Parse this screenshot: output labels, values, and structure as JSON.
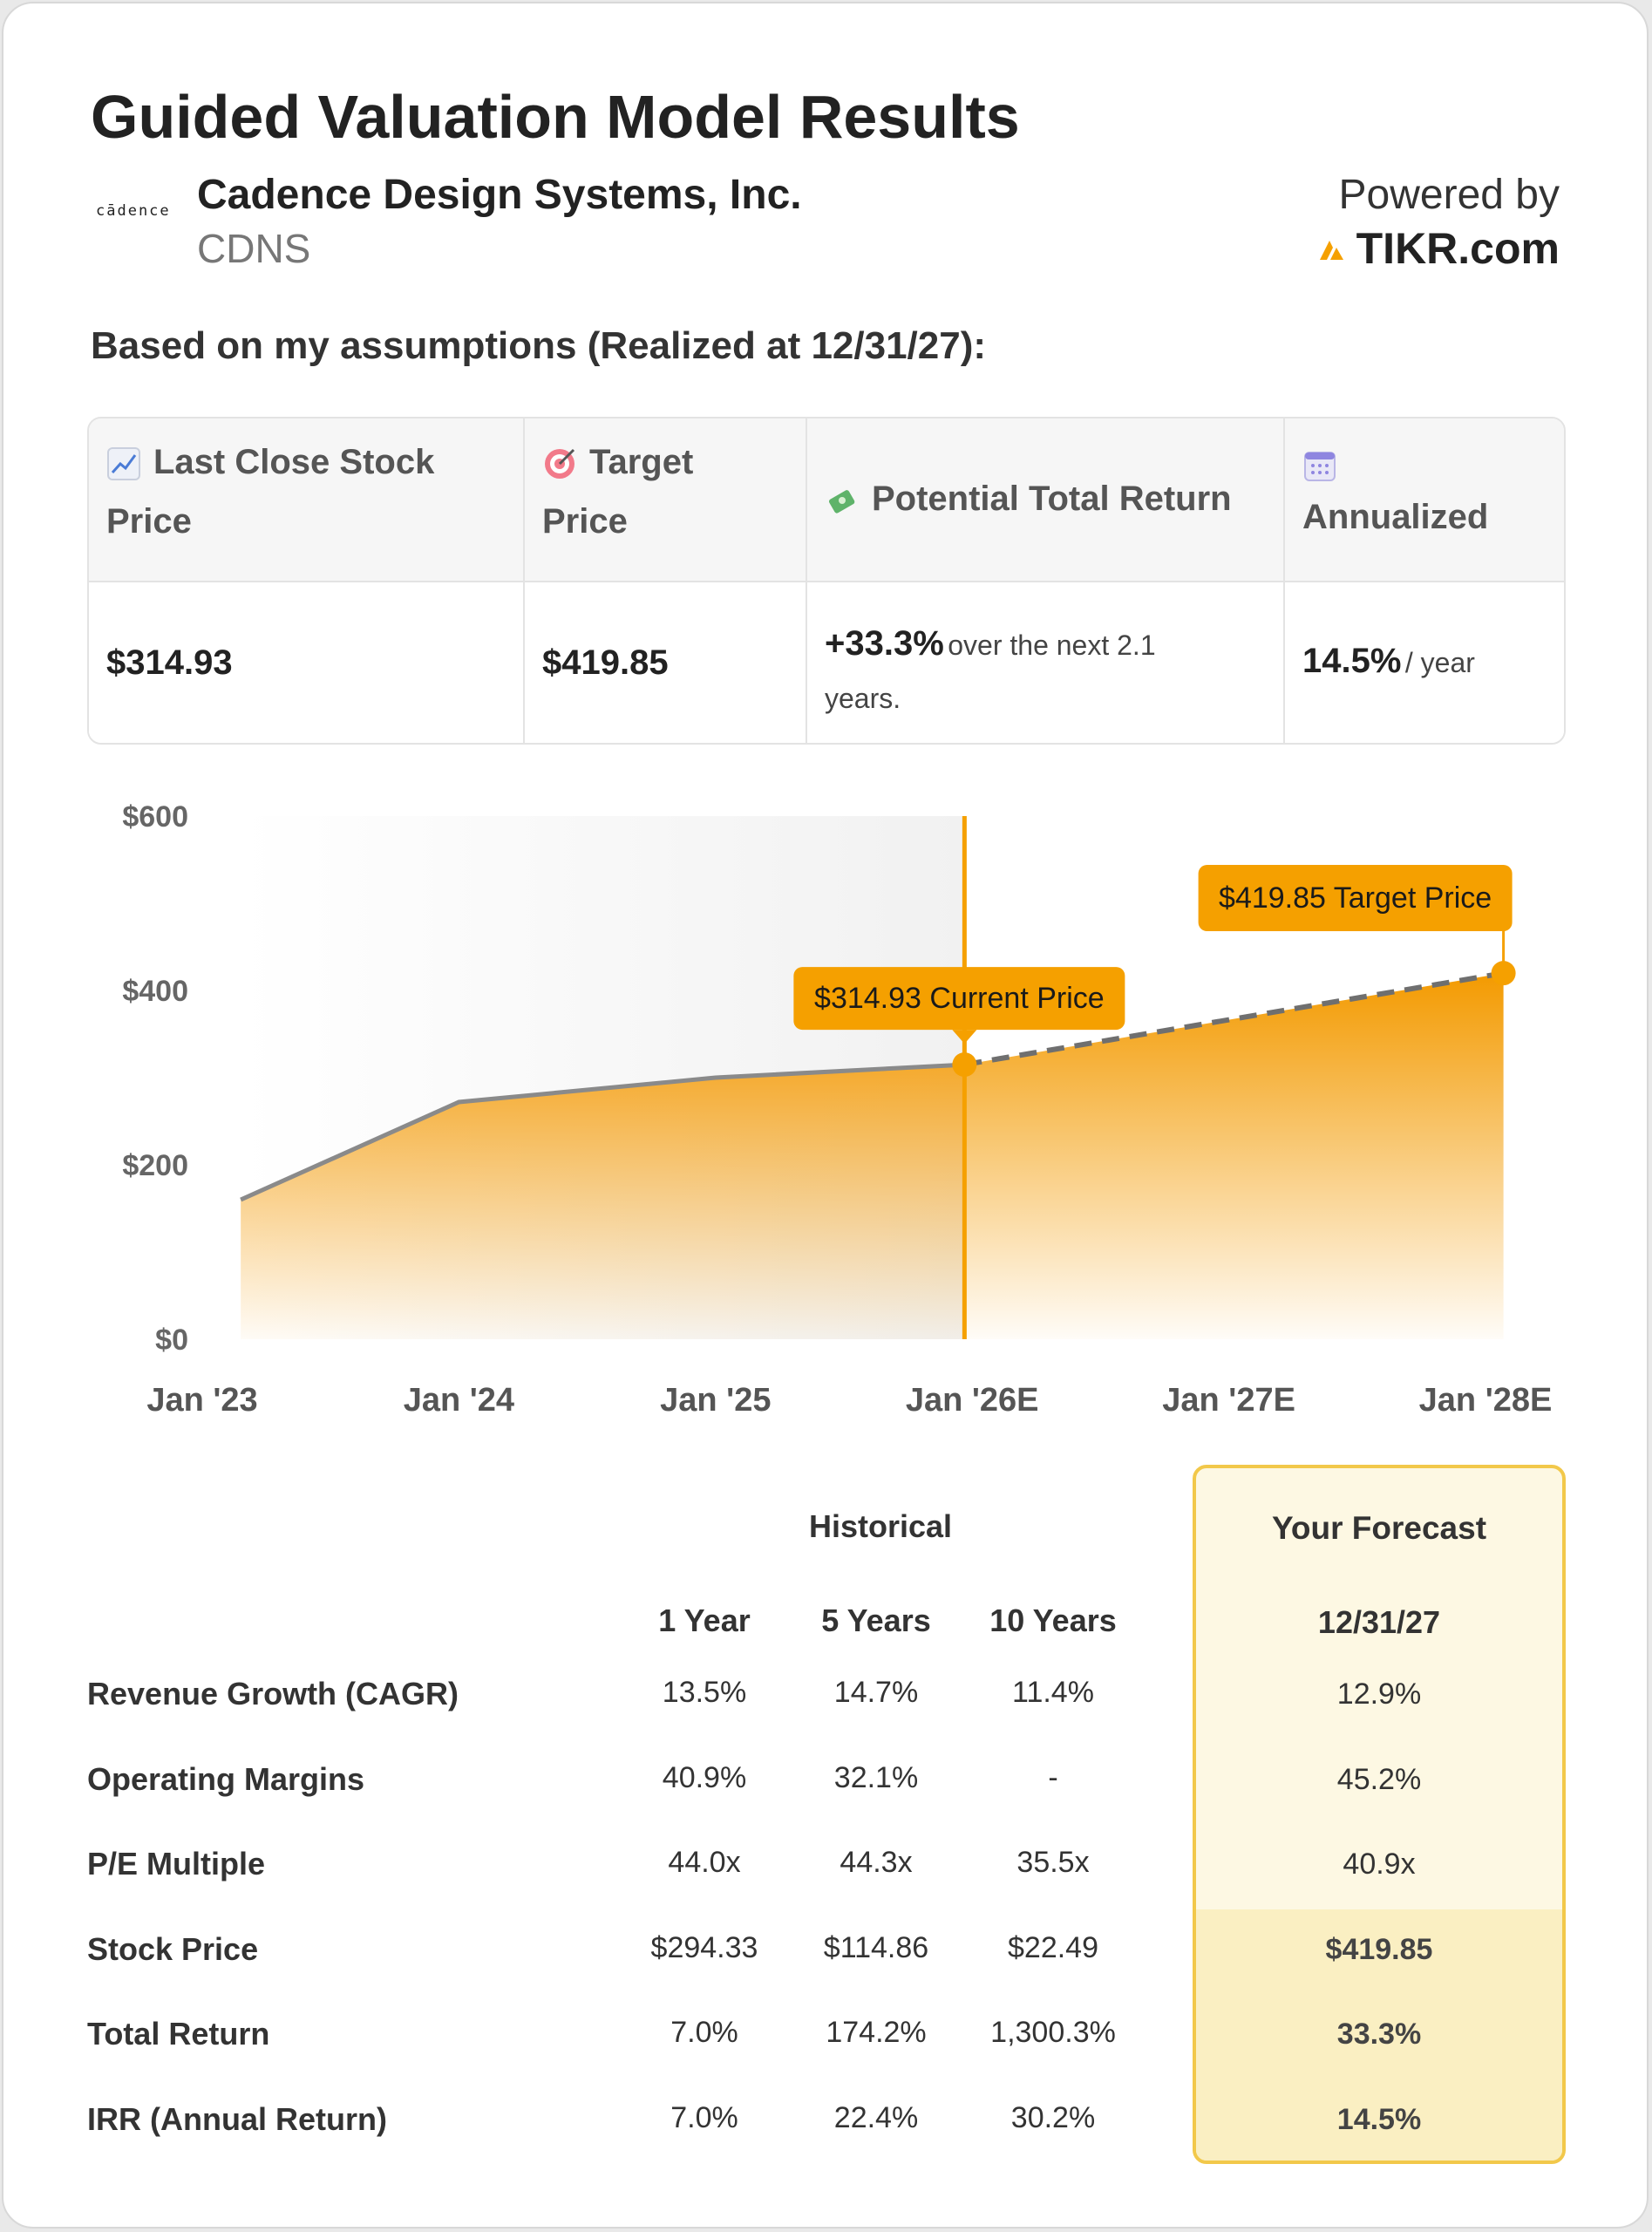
{
  "header": {
    "title": "Guided Valuation Model Results",
    "logo_text": "cādence",
    "company_name": "Cadence Design Systems, Inc.",
    "ticker": "CDNS",
    "powered_by": "Powered by",
    "brand": "TIKR.com"
  },
  "assumptions_text": "Based on my assumptions (Realized at 12/31/27):",
  "summary": {
    "headers": {
      "last_close_line1": "Last Close Stock",
      "last_close_line2": "Price",
      "target_line1": "Target",
      "target_line2": "Price",
      "potential": "Potential Total Return",
      "annualized": "Annualized"
    },
    "values": {
      "last_close": "$314.93",
      "target": "$419.85",
      "potential_pct": "+33.3%",
      "potential_line1": "over the next 2.1",
      "potential_line2": "years.",
      "annualized_pct": "14.5%",
      "annualized_suffix": "/ year"
    }
  },
  "chart_data": {
    "type": "area",
    "x": [
      "Jan '23",
      "Jan '24",
      "Jan '25",
      "Jan '26E",
      "Jan '27E",
      "Jan '28E"
    ],
    "y_ticks": [
      "$0",
      "$200",
      "$400",
      "$600"
    ],
    "ylim": [
      0,
      600
    ],
    "historical": [
      {
        "t": 2023.15,
        "v": 160
      },
      {
        "t": 2024.0,
        "v": 272
      },
      {
        "t": 2025.0,
        "v": 300
      },
      {
        "t": 2025.97,
        "v": 314.93
      }
    ],
    "forecast": [
      {
        "t": 2025.97,
        "v": 314.93
      },
      {
        "t": 2028.07,
        "v": 419.85
      }
    ],
    "current_label": "$314.93 Current Price",
    "target_label": "$419.85 Target Price",
    "colors": {
      "accent": "#f5a000",
      "line": "#8a8a8a"
    }
  },
  "metrics": {
    "historical_title": "Historical",
    "columns": [
      "1 Year",
      "5 Years",
      "10 Years"
    ],
    "forecast_title": "Your Forecast",
    "forecast_date": "12/31/27",
    "rows": [
      {
        "label": "Revenue Growth (CAGR)",
        "y1": "13.5%",
        "y5": "14.7%",
        "y10": "11.4%",
        "fc": "12.9%"
      },
      {
        "label": "Operating Margins",
        "y1": "40.9%",
        "y5": "32.1%",
        "y10": "-",
        "fc": "45.2%"
      },
      {
        "label": "P/E Multiple",
        "y1": "44.0x",
        "y5": "44.3x",
        "y10": "35.5x",
        "fc": "40.9x"
      },
      {
        "label": "Stock Price",
        "y1": "$294.33",
        "y5": "$114.86",
        "y10": "$22.49",
        "fc": "$419.85"
      },
      {
        "label": "Total Return",
        "y1": "7.0%",
        "y5": "174.2%",
        "y10": "1,300.3%",
        "fc": "33.3%"
      },
      {
        "label": "IRR (Annual Return)",
        "y1": "7.0%",
        "y5": "22.4%",
        "y10": "30.2%",
        "fc": "14.5%"
      }
    ]
  }
}
